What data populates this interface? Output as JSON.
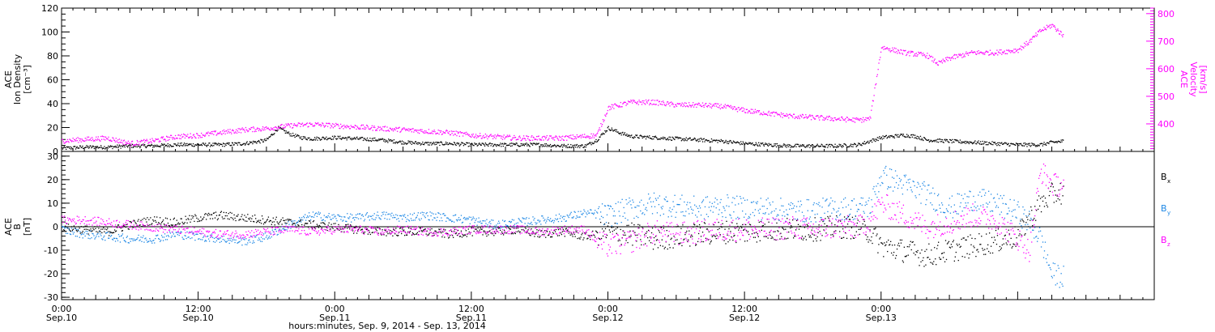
{
  "chart_data": [
    {
      "type": "scatter",
      "panel": "top",
      "ylabel": [
        "ACE",
        "Ion Density",
        "[cm⁻³]"
      ],
      "ylabel_right": [
        "ACE",
        "Velocity",
        "[km/s]"
      ],
      "ylim": [
        0,
        120
      ],
      "y_ticks": [
        "0",
        "20",
        "40",
        "60",
        "80",
        "100",
        "120"
      ],
      "ylim_right": [
        300,
        820
      ],
      "y_ticks_right": [
        "400",
        "500",
        "600",
        "700",
        "800"
      ],
      "colors": {
        "density": "#000000",
        "velocity": "#ff00ff"
      },
      "series": [
        {
          "key": "density",
          "color": "#000000",
          "points": [
            [
              0,
              3
            ],
            [
              2,
              4
            ],
            [
              4,
              4
            ],
            [
              6,
              5
            ],
            [
              8,
              5
            ],
            [
              10,
              6
            ],
            [
              12,
              6
            ],
            [
              14,
              6
            ],
            [
              16,
              7
            ],
            [
              17.5,
              9
            ],
            [
              18,
              10
            ],
            [
              19,
              20
            ],
            [
              20,
              15
            ],
            [
              21,
              12
            ],
            [
              22,
              11
            ],
            [
              24,
              12
            ],
            [
              26,
              11
            ],
            [
              28,
              10
            ],
            [
              30,
              8
            ],
            [
              32,
              7
            ],
            [
              34,
              7
            ],
            [
              36,
              6
            ],
            [
              38,
              6
            ],
            [
              40,
              6
            ],
            [
              42,
              6
            ],
            [
              44,
              5
            ],
            [
              46,
              5
            ],
            [
              47,
              10
            ],
            [
              48,
              20
            ],
            [
              49,
              16
            ],
            [
              50,
              13
            ],
            [
              52,
              12
            ],
            [
              54,
              11
            ],
            [
              56,
              10
            ],
            [
              58,
              9
            ],
            [
              60,
              7
            ],
            [
              62,
              6
            ],
            [
              64,
              5
            ],
            [
              66,
              5
            ],
            [
              68,
              5
            ],
            [
              70,
              6
            ],
            [
              72,
              12
            ],
            [
              74,
              14
            ],
            [
              75,
              13
            ],
            [
              76,
              10
            ],
            [
              78,
              9
            ],
            [
              80,
              8
            ],
            [
              82,
              7
            ],
            [
              84,
              6
            ],
            [
              86,
              6
            ],
            [
              87,
              8
            ],
            [
              88,
              9
            ]
          ]
        },
        {
          "key": "velocity",
          "color": "#ff00ff",
          "points": [
            [
              0,
              340
            ],
            [
              2,
              345
            ],
            [
              4,
              350
            ],
            [
              6,
              330
            ],
            [
              8,
              340
            ],
            [
              10,
              355
            ],
            [
              12,
              360
            ],
            [
              14,
              370
            ],
            [
              16,
              380
            ],
            [
              18,
              385
            ],
            [
              20,
              395
            ],
            [
              22,
              400
            ],
            [
              24,
              395
            ],
            [
              26,
              390
            ],
            [
              28,
              385
            ],
            [
              30,
              380
            ],
            [
              32,
              375
            ],
            [
              34,
              370
            ],
            [
              36,
              360
            ],
            [
              38,
              355
            ],
            [
              40,
              350
            ],
            [
              44,
              350
            ],
            [
              47,
              360
            ],
            [
              48,
              460
            ],
            [
              50,
              480
            ],
            [
              52,
              480
            ],
            [
              54,
              470
            ],
            [
              56,
              470
            ],
            [
              58,
              465
            ],
            [
              60,
              450
            ],
            [
              62,
              440
            ],
            [
              64,
              430
            ],
            [
              66,
              425
            ],
            [
              68,
              420
            ],
            [
              70,
              415
            ],
            [
              71,
              420
            ],
            [
              72,
              680
            ],
            [
              74,
              660
            ],
            [
              76,
              650
            ],
            [
              77,
              620
            ],
            [
              78,
              640
            ],
            [
              80,
              660
            ],
            [
              82,
              660
            ],
            [
              84,
              670
            ],
            [
              85,
              700
            ],
            [
              86,
              740
            ],
            [
              87,
              760
            ],
            [
              88,
              720
            ]
          ]
        }
      ]
    },
    {
      "type": "scatter",
      "panel": "bottom",
      "ylabel": [
        "ACE",
        "B",
        "[nT]"
      ],
      "ylim": [
        -31,
        32
      ],
      "y_ticks": [
        "-30",
        "-20",
        "-10",
        "0",
        "10",
        "20",
        "30"
      ],
      "legend_position": "right",
      "series": [
        {
          "name": "B",
          "sub": "x",
          "color": "#000000",
          "points": [
            [
              0,
              0
            ],
            [
              2,
              -1
            ],
            [
              4,
              -2
            ],
            [
              6,
              1
            ],
            [
              8,
              3
            ],
            [
              10,
              2
            ],
            [
              12,
              4
            ],
            [
              14,
              5
            ],
            [
              16,
              4
            ],
            [
              18,
              3
            ],
            [
              20,
              2
            ],
            [
              22,
              1
            ],
            [
              24,
              0
            ],
            [
              26,
              -1
            ],
            [
              28,
              -2
            ],
            [
              30,
              -2
            ],
            [
              32,
              -2
            ],
            [
              34,
              -3
            ],
            [
              36,
              -2
            ],
            [
              38,
              -2
            ],
            [
              40,
              -1
            ],
            [
              42,
              -3
            ],
            [
              44,
              -2
            ],
            [
              46,
              -4
            ],
            [
              48,
              -2
            ],
            [
              50,
              -3
            ],
            [
              52,
              -5
            ],
            [
              54,
              -4
            ],
            [
              56,
              -3
            ],
            [
              58,
              -2
            ],
            [
              60,
              -2
            ],
            [
              62,
              -1
            ],
            [
              64,
              -1
            ],
            [
              66,
              -1
            ],
            [
              68,
              0
            ],
            [
              70,
              0
            ],
            [
              71,
              -2
            ],
            [
              72,
              -8
            ],
            [
              74,
              -10
            ],
            [
              76,
              -12
            ],
            [
              78,
              -10
            ],
            [
              80,
              -8
            ],
            [
              82,
              -6
            ],
            [
              84,
              -4
            ],
            [
              85,
              4
            ],
            [
              86,
              10
            ],
            [
              87,
              14
            ],
            [
              88,
              15
            ]
          ]
        },
        {
          "name": "B",
          "sub": "y",
          "color": "#1e88e5",
          "points": [
            [
              0,
              -1
            ],
            [
              2,
              -3
            ],
            [
              4,
              -4
            ],
            [
              6,
              -5
            ],
            [
              8,
              -5
            ],
            [
              10,
              -3
            ],
            [
              12,
              -4
            ],
            [
              14,
              -5
            ],
            [
              16,
              -6
            ],
            [
              18,
              -4
            ],
            [
              20,
              1
            ],
            [
              22,
              5
            ],
            [
              24,
              4
            ],
            [
              26,
              4
            ],
            [
              28,
              5
            ],
            [
              30,
              4
            ],
            [
              32,
              5
            ],
            [
              34,
              4
            ],
            [
              36,
              3
            ],
            [
              38,
              1
            ],
            [
              40,
              2
            ],
            [
              42,
              3
            ],
            [
              44,
              4
            ],
            [
              46,
              6
            ],
            [
              48,
              5
            ],
            [
              50,
              8
            ],
            [
              52,
              10
            ],
            [
              54,
              9
            ],
            [
              56,
              8
            ],
            [
              58,
              9
            ],
            [
              60,
              8
            ],
            [
              62,
              8
            ],
            [
              64,
              7
            ],
            [
              66,
              7
            ],
            [
              68,
              8
            ],
            [
              70,
              8
            ],
            [
              71,
              9
            ],
            [
              72,
              22
            ],
            [
              74,
              18
            ],
            [
              76,
              14
            ],
            [
              78,
              8
            ],
            [
              80,
              12
            ],
            [
              82,
              10
            ],
            [
              84,
              6
            ],
            [
              85,
              2
            ],
            [
              86,
              -5
            ],
            [
              87,
              -20
            ],
            [
              88,
              -21
            ]
          ]
        },
        {
          "name": "B",
          "sub": "z",
          "color": "#ff00ff",
          "points": [
            [
              0,
              3
            ],
            [
              2,
              3
            ],
            [
              4,
              2
            ],
            [
              6,
              1
            ],
            [
              8,
              0
            ],
            [
              10,
              -1
            ],
            [
              12,
              -2
            ],
            [
              14,
              -3
            ],
            [
              16,
              -3
            ],
            [
              18,
              -2
            ],
            [
              20,
              -1
            ],
            [
              22,
              -2
            ],
            [
              24,
              -1
            ],
            [
              26,
              -1
            ],
            [
              28,
              -2
            ],
            [
              30,
              -1
            ],
            [
              32,
              -2
            ],
            [
              34,
              -2
            ],
            [
              36,
              -1
            ],
            [
              38,
              -1
            ],
            [
              40,
              -1
            ],
            [
              42,
              -2
            ],
            [
              44,
              -1
            ],
            [
              46,
              -1
            ],
            [
              47,
              -6
            ],
            [
              48,
              -8
            ],
            [
              50,
              -6
            ],
            [
              52,
              -2
            ],
            [
              54,
              -3
            ],
            [
              56,
              -2
            ],
            [
              58,
              -1
            ],
            [
              60,
              -1
            ],
            [
              62,
              -1
            ],
            [
              64,
              0
            ],
            [
              66,
              -1
            ],
            [
              68,
              0
            ],
            [
              70,
              0
            ],
            [
              71,
              3
            ],
            [
              72,
              10
            ],
            [
              74,
              5
            ],
            [
              76,
              0
            ],
            [
              78,
              2
            ],
            [
              80,
              5
            ],
            [
              82,
              3
            ],
            [
              84,
              -5
            ],
            [
              85,
              -10
            ],
            [
              86,
              24
            ],
            [
              87,
              18
            ],
            [
              88,
              18
            ]
          ]
        }
      ]
    }
  ],
  "x_axis": {
    "xlim": [
      0,
      96
    ],
    "ticks": [
      {
        "x": 0,
        "time": "0:00",
        "date": "Sep.10"
      },
      {
        "x": 12,
        "time": "12:00",
        "date": "Sep.10"
      },
      {
        "x": 24,
        "time": "0:00",
        "date": "Sep.11"
      },
      {
        "x": 36,
        "time": "12:00",
        "date": "Sep.11"
      },
      {
        "x": 48,
        "time": "0:00",
        "date": "Sep.12"
      },
      {
        "x": 60,
        "time": "12:00",
        "date": "Sep.12"
      },
      {
        "x": 72,
        "time": "0:00",
        "date": "Sep.13"
      }
    ],
    "xlabel": "hours:minutes, Sep.  9, 2014 - Sep. 13, 2014"
  }
}
